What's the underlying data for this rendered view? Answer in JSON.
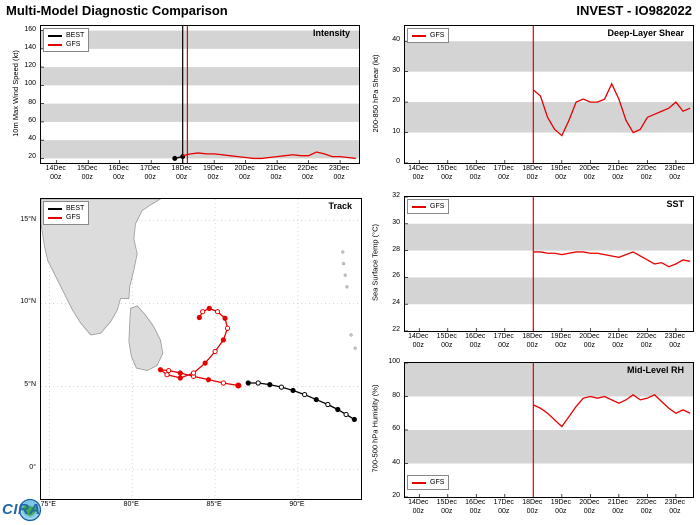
{
  "header": {
    "title_left": "Multi-Model Diagnostic Comparison",
    "title_right": "INVEST - IO982022"
  },
  "logo": {
    "text": "CIRA"
  },
  "x_time": {
    "values": [
      14,
      15,
      16,
      17,
      18,
      19,
      20,
      21,
      22,
      23
    ],
    "labels": [
      [
        "14Dec",
        "00z"
      ],
      [
        "15Dec",
        "00z"
      ],
      [
        "16Dec",
        "00z"
      ],
      [
        "17Dec",
        "00z"
      ],
      [
        "18Dec",
        "00z"
      ],
      [
        "19Dec",
        "00z"
      ],
      [
        "20Dec",
        "00z"
      ],
      [
        "21Dec",
        "00z"
      ],
      [
        "22Dec",
        "00z"
      ],
      [
        "23Dec",
        "00z"
      ]
    ]
  },
  "chart_data": [
    {
      "type": "line",
      "name": "intensity",
      "title": "Intensity",
      "ylabel": "10m Max Wind Speed (kt)",
      "xlim": [
        13.5,
        23.6
      ],
      "ylim": [
        15,
        165
      ],
      "yticks": [
        20,
        40,
        60,
        80,
        100,
        120,
        140,
        160
      ],
      "bands": [
        [
          20,
          40
        ],
        [
          60,
          80
        ],
        [
          100,
          120
        ],
        [
          140,
          160
        ]
      ],
      "vlines": [
        {
          "x": 18,
          "color": "#000000"
        },
        {
          "x": 18.15,
          "color": "#e60000"
        }
      ],
      "legend_pos": "tl",
      "series": [
        {
          "name": "BEST",
          "color": "#000000",
          "markers": true,
          "points": [
            [
              17.75,
              20
            ],
            [
              18,
              22
            ]
          ]
        },
        {
          "name": "GFS",
          "color": "#e60000",
          "markers": false,
          "points": [
            [
              18,
              23
            ],
            [
              18.25,
              25
            ],
            [
              18.5,
              26
            ],
            [
              18.75,
              25
            ],
            [
              19,
              25
            ],
            [
              19.25,
              24
            ],
            [
              19.5,
              23
            ],
            [
              19.75,
              22
            ],
            [
              20,
              21
            ],
            [
              20.25,
              20
            ],
            [
              20.5,
              20
            ],
            [
              20.75,
              21
            ],
            [
              21,
              22
            ],
            [
              21.25,
              23
            ],
            [
              21.5,
              24
            ],
            [
              21.75,
              23
            ],
            [
              22,
              23
            ],
            [
              22.25,
              27
            ],
            [
              22.5,
              25
            ],
            [
              22.75,
              22
            ],
            [
              23,
              22
            ],
            [
              23.25,
              21
            ],
            [
              23.5,
              20
            ]
          ]
        }
      ]
    },
    {
      "type": "line",
      "name": "deep-layer-shear",
      "title": "Deep-Layer Shear",
      "ylabel": "200-850 hPa Shear (kt)",
      "xlim": [
        13.5,
        23.6
      ],
      "ylim": [
        0,
        45
      ],
      "yticks": [
        0,
        10,
        20,
        30,
        40
      ],
      "bands": [
        [
          10,
          20
        ],
        [
          30,
          40
        ]
      ],
      "vlines": [
        {
          "x": 18,
          "color": "#e60000"
        }
      ],
      "legend_pos": "tl",
      "series": [
        {
          "name": "GFS",
          "color": "#e60000",
          "markers": false,
          "points": [
            [
              18,
              24
            ],
            [
              18.25,
              22
            ],
            [
              18.5,
              15
            ],
            [
              18.75,
              11
            ],
            [
              19,
              9
            ],
            [
              19.25,
              14
            ],
            [
              19.5,
              20
            ],
            [
              19.75,
              21
            ],
            [
              20,
              20
            ],
            [
              20.25,
              20
            ],
            [
              20.5,
              21
            ],
            [
              20.75,
              26
            ],
            [
              21,
              21
            ],
            [
              21.25,
              14
            ],
            [
              21.5,
              10
            ],
            [
              21.75,
              11
            ],
            [
              22,
              15
            ],
            [
              22.25,
              16
            ],
            [
              22.5,
              17
            ],
            [
              22.75,
              18
            ],
            [
              23,
              20
            ],
            [
              23.25,
              17
            ],
            [
              23.5,
              18
            ]
          ]
        }
      ]
    },
    {
      "type": "line",
      "name": "sst",
      "title": "SST",
      "ylabel": "Sea Surface Temp (°C)",
      "xlim": [
        13.5,
        23.6
      ],
      "ylim": [
        22,
        32
      ],
      "yticks": [
        22,
        24,
        26,
        28,
        30,
        32
      ],
      "bands": [
        [
          24,
          26
        ],
        [
          28,
          30
        ]
      ],
      "vlines": [
        {
          "x": 18,
          "color": "#e60000"
        }
      ],
      "legend_pos": "tl",
      "series": [
        {
          "name": "GFS",
          "color": "#e60000",
          "markers": false,
          "points": [
            [
              18,
              27.9
            ],
            [
              18.25,
              27.9
            ],
            [
              18.5,
              27.8
            ],
            [
              18.75,
              27.8
            ],
            [
              19,
              27.7
            ],
            [
              19.25,
              27.8
            ],
            [
              19.5,
              27.9
            ],
            [
              19.75,
              27.9
            ],
            [
              20,
              27.8
            ],
            [
              20.25,
              27.8
            ],
            [
              20.5,
              27.7
            ],
            [
              20.75,
              27.6
            ],
            [
              21,
              27.5
            ],
            [
              21.25,
              27.7
            ],
            [
              21.5,
              27.9
            ],
            [
              21.75,
              27.6
            ],
            [
              22,
              27.3
            ],
            [
              22.25,
              27.0
            ],
            [
              22.5,
              27.1
            ],
            [
              22.75,
              26.8
            ],
            [
              23,
              27.0
            ],
            [
              23.25,
              27.3
            ],
            [
              23.5,
              27.2
            ]
          ]
        }
      ]
    },
    {
      "type": "line",
      "name": "mid-level-rh",
      "title": "Mid-Level RH",
      "ylabel": "700-500 hPa Humidity (%)",
      "xlim": [
        13.5,
        23.6
      ],
      "ylim": [
        20,
        100
      ],
      "yticks": [
        20,
        40,
        60,
        80,
        100
      ],
      "bands": [
        [
          40,
          60
        ],
        [
          80,
          100
        ]
      ],
      "vlines": [
        {
          "x": 18,
          "color": "#e60000"
        }
      ],
      "legend_pos": "bl",
      "series": [
        {
          "name": "GFS",
          "color": "#e60000",
          "markers": false,
          "points": [
            [
              18,
              75
            ],
            [
              18.25,
              73
            ],
            [
              18.5,
              70
            ],
            [
              18.75,
              66
            ],
            [
              19,
              62
            ],
            [
              19.25,
              68
            ],
            [
              19.5,
              74
            ],
            [
              19.75,
              79
            ],
            [
              20,
              80
            ],
            [
              20.25,
              79
            ],
            [
              20.5,
              80
            ],
            [
              20.75,
              78
            ],
            [
              21,
              76
            ],
            [
              21.25,
              78
            ],
            [
              21.5,
              81
            ],
            [
              21.75,
              78
            ],
            [
              22,
              79
            ],
            [
              22.25,
              81
            ],
            [
              22.5,
              77
            ],
            [
              22.75,
              73
            ],
            [
              23,
              70
            ],
            [
              23.25,
              72
            ],
            [
              23.5,
              70
            ]
          ]
        }
      ]
    },
    {
      "type": "map",
      "name": "track",
      "title": "Track",
      "lonlim": [
        74.5,
        93.8
      ],
      "latlim": [
        -1.8,
        16.3
      ],
      "lon_ticks": [
        {
          "v": 75,
          "label": "75°E"
        },
        {
          "v": 80,
          "label": "80°E"
        },
        {
          "v": 85,
          "label": "85°E"
        },
        {
          "v": 90,
          "label": "90°E"
        }
      ],
      "lat_ticks": [
        {
          "v": 0,
          "label": "0°"
        },
        {
          "v": 5,
          "label": "5°N"
        },
        {
          "v": 10,
          "label": "10°N"
        },
        {
          "v": 15,
          "label": "15°N"
        }
      ],
      "land": [
        [
          [
            74.5,
            16.3
          ],
          [
            74.5,
            14.8
          ],
          [
            74.7,
            13.5
          ],
          [
            74.9,
            12.6
          ],
          [
            75.4,
            11.6
          ],
          [
            75.9,
            10.6
          ],
          [
            76.4,
            9.6
          ],
          [
            76.9,
            8.8
          ],
          [
            77.5,
            8.1
          ],
          [
            78.1,
            8.2
          ],
          [
            78.7,
            8.9
          ],
          [
            79.1,
            9.6
          ],
          [
            79.3,
            10.3
          ],
          [
            79.8,
            10.3
          ],
          [
            79.85,
            11.0
          ],
          [
            80.1,
            12.0
          ],
          [
            80.3,
            13.0
          ],
          [
            80.1,
            13.9
          ],
          [
            80.2,
            14.8
          ],
          [
            80.6,
            15.6
          ],
          [
            81.2,
            16.0
          ],
          [
            81.7,
            16.3
          ]
        ],
        [
          [
            79.9,
            9.7
          ],
          [
            80.3,
            9.85
          ],
          [
            80.8,
            9.3
          ],
          [
            81.3,
            8.6
          ],
          [
            81.7,
            7.8
          ],
          [
            81.85,
            7.0
          ],
          [
            81.5,
            6.25
          ],
          [
            80.9,
            5.95
          ],
          [
            80.25,
            6.1
          ],
          [
            79.95,
            6.8
          ],
          [
            79.8,
            7.7
          ],
          [
            79.85,
            8.8
          ]
        ]
      ],
      "islands": [
        [
          92.7,
          13.1
        ],
        [
          92.75,
          12.4
        ],
        [
          92.85,
          11.7
        ],
        [
          92.95,
          11.0
        ],
        [
          93.2,
          8.1
        ],
        [
          93.45,
          7.3
        ]
      ],
      "legend_pos": "tl",
      "series": [
        {
          "name": "BEST",
          "color": "#000000",
          "points": [
            [
              93.4,
              3.0
            ],
            [
              92.9,
              3.3
            ],
            [
              92.4,
              3.6
            ],
            [
              91.8,
              3.9
            ],
            [
              91.1,
              4.2
            ],
            [
              90.4,
              4.5
            ],
            [
              89.7,
              4.75
            ],
            [
              89.0,
              4.95
            ],
            [
              88.3,
              5.1
            ],
            [
              87.6,
              5.2
            ],
            [
              87.0,
              5.2
            ]
          ]
        },
        {
          "name": "GFS",
          "color": "#e60000",
          "start_dot": [
            86.4,
            5.05
          ],
          "points": [
            [
              86.4,
              5.05
            ],
            [
              85.5,
              5.2
            ],
            [
              84.6,
              5.4
            ],
            [
              83.7,
              5.6
            ],
            [
              82.9,
              5.8
            ],
            [
              82.2,
              5.95
            ],
            [
              81.7,
              6.0
            ],
            [
              82.1,
              5.7
            ],
            [
              82.9,
              5.5
            ],
            [
              83.7,
              5.8
            ],
            [
              84.4,
              6.4
            ],
            [
              85.0,
              7.1
            ],
            [
              85.5,
              7.8
            ],
            [
              85.75,
              8.5
            ],
            [
              85.6,
              9.1
            ],
            [
              85.15,
              9.5
            ],
            [
              84.65,
              9.7
            ],
            [
              84.25,
              9.5
            ],
            [
              84.05,
              9.15
            ]
          ]
        }
      ]
    }
  ]
}
